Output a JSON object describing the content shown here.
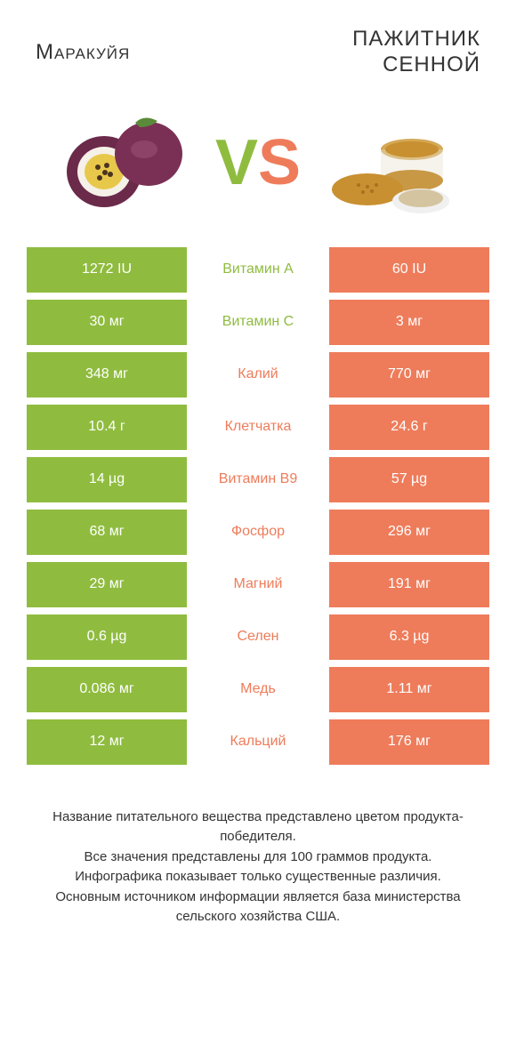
{
  "colors": {
    "left": "#8fbc3f",
    "right": "#ee7c5b",
    "vs_left": "#8fbc3f",
    "vs_right": "#ee7c5b"
  },
  "titles": {
    "left": "Mаракуйя",
    "right": "ПАЖИТНИК\nСЕННОЙ"
  },
  "rows": [
    {
      "left": "1272 IU",
      "mid": "Витамин A",
      "right": "60 IU",
      "winner": "left"
    },
    {
      "left": "30 мг",
      "mid": "Витамин C",
      "right": "3 мг",
      "winner": "left"
    },
    {
      "left": "348 мг",
      "mid": "Калий",
      "right": "770 мг",
      "winner": "right"
    },
    {
      "left": "10.4 г",
      "mid": "Клетчатка",
      "right": "24.6 г",
      "winner": "right"
    },
    {
      "left": "14 µg",
      "mid": "Витамин B9",
      "right": "57 µg",
      "winner": "right"
    },
    {
      "left": "68 мг",
      "mid": "Фосфор",
      "right": "296 мг",
      "winner": "right"
    },
    {
      "left": "29 мг",
      "mid": "Магний",
      "right": "191 мг",
      "winner": "right"
    },
    {
      "left": "0.6 µg",
      "mid": "Селен",
      "right": "6.3 µg",
      "winner": "right"
    },
    {
      "left": "0.086 мг",
      "mid": "Медь",
      "right": "1.11 мг",
      "winner": "right"
    },
    {
      "left": "12 мг",
      "mid": "Кальций",
      "right": "176 мг",
      "winner": "right"
    }
  ],
  "footer": {
    "line1": "Название питательного вещества представлено цветом продукта-победителя.",
    "line2": "Все значения представлены для 100 граммов продукта.",
    "line3": "Инфографика показывает только существенные различия.",
    "line4": "Основным источником информации является база министерства сельского хозяйства США."
  }
}
